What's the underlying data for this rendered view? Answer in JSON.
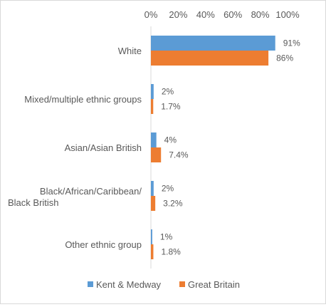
{
  "chart_data": {
    "type": "bar",
    "orientation": "horizontal",
    "categories": [
      "White",
      "Mixed/multiple ethnic groups",
      "Asian/Asian British",
      "Black/African/Caribbean/Black British",
      "Other ethnic group"
    ],
    "series": [
      {
        "name": "Kent & Medway",
        "color": "#5b9bd5",
        "values": [
          91,
          2,
          4,
          2,
          1
        ],
        "labels": [
          "91%",
          "2%",
          "4%",
          "2%",
          "1%"
        ]
      },
      {
        "name": "Great Britain",
        "color": "#ed7d31",
        "values": [
          86,
          1.7,
          7.4,
          3.2,
          1.8
        ],
        "labels": [
          "86%",
          "1.7%",
          "7.4%",
          "3.2%",
          "1.8%"
        ]
      }
    ],
    "xlim": [
      0,
      100
    ],
    "xticks": [
      0,
      20,
      40,
      60,
      80,
      100
    ],
    "xtick_labels": [
      "0%",
      "20%",
      "40%",
      "60%",
      "80%",
      "100%"
    ],
    "x_axis_position": "top",
    "grid": false,
    "legend": "bottom",
    "title": "",
    "xlabel": "",
    "ylabel": ""
  }
}
